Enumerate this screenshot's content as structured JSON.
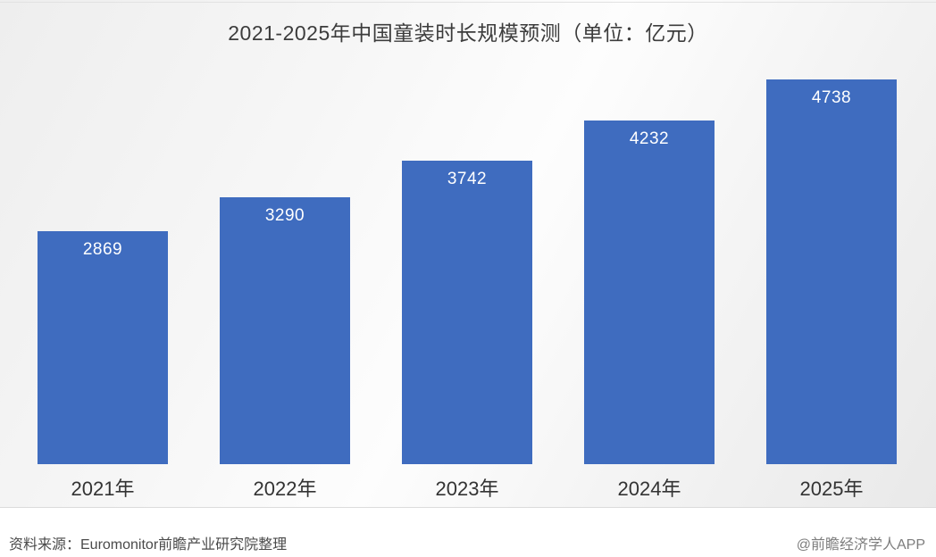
{
  "chart_data": {
    "type": "bar",
    "title": "2021-2025年中国童装时长规模预测（单位：亿元）",
    "categories": [
      "2021年",
      "2022年",
      "2023年",
      "2024年",
      "2025年"
    ],
    "values": [
      2869,
      3290,
      3742,
      4232,
      4738
    ],
    "xlabel": "",
    "ylabel": "",
    "ylim": [
      0,
      4738
    ],
    "grid": false,
    "legend_position": "none",
    "bar_color": "#3f6cbf",
    "value_label_color": "#ffffff"
  },
  "footer": {
    "source": "资料来源：Euromonitor前瞻产业研究院整理",
    "brand": "@前瞻经济学人APP"
  }
}
